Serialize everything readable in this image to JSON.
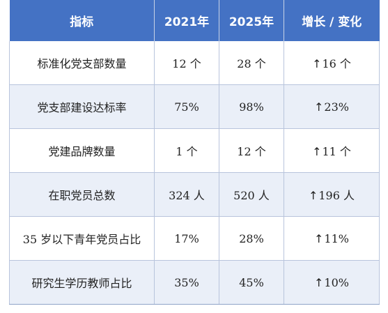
{
  "table": {
    "headers": [
      "指标",
      "2021年",
      "2025年",
      "增长 / 变化"
    ],
    "rows": [
      {
        "indicator": "标准化党支部数量",
        "y2021": "12 个",
        "y2025": "28 个",
        "change": "16 个"
      },
      {
        "indicator": "党支部建设达标率",
        "y2021": "75%",
        "y2025": "98%",
        "change": "23%"
      },
      {
        "indicator": "党建品牌数量",
        "y2021": "1 个",
        "y2025": "12 个",
        "change": "11 个"
      },
      {
        "indicator": "在职党员总数",
        "y2021": "324 人",
        "y2025": "520 人",
        "change": "196 人"
      },
      {
        "indicator": "35 岁以下青年党员占比",
        "y2021": "17%",
        "y2025": "28%",
        "change": "11%"
      },
      {
        "indicator": "研究生学历教师占比",
        "y2021": "35%",
        "y2025": "45%",
        "change": "10%"
      }
    ],
    "change_icon": "up-arrow-icon",
    "colors": {
      "header_bg": "#4472c4",
      "header_text": "#ffffff",
      "stripe_bg": "#eaeff8",
      "border": "#b8c4dc"
    }
  }
}
